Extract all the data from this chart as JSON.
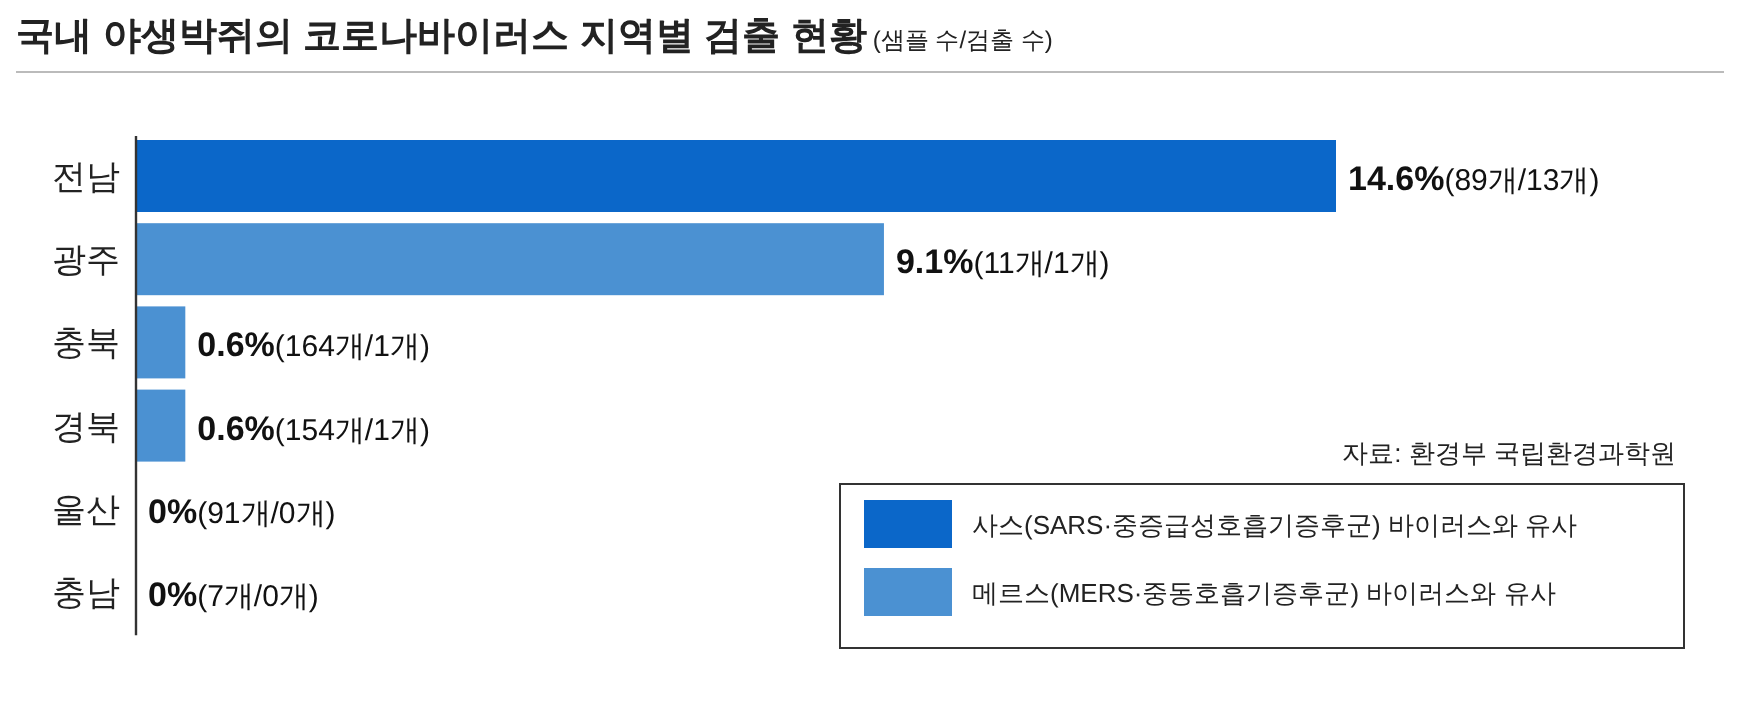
{
  "chart_data": {
    "type": "bar",
    "orientation": "horizontal",
    "title": "국내 야생박쥐의 코로나바이러스 지역별 검출 현황",
    "subtitle": "(샘플 수/검출 수)",
    "categories": [
      "전남",
      "광주",
      "충북",
      "경북",
      "울산",
      "충남"
    ],
    "series": [
      {
        "name": "사스(SARS·중증급성호흡기증후군) 바이러스와 유사",
        "color": "#0b67c9",
        "values": [
          14.6,
          null,
          null,
          null,
          null,
          null
        ],
        "value_labels": [
          "14.6%(89개/13개)",
          null,
          null,
          null,
          null,
          null
        ]
      },
      {
        "name": "메르스(MERS·중동호흡기증후군) 바이러스와 유사",
        "color": "#4b91d2",
        "values": [
          null,
          9.1,
          0.6,
          0.6,
          0,
          0
        ],
        "value_labels": [
          null,
          "9.1%(11개/1개)",
          "0.6%(164개/1개)",
          "0.6%(154개/1개)",
          "0%(91개/0개)",
          "0%(7개/0개)"
        ]
      }
    ],
    "legend": "bottom right",
    "annotations": [
      "자료: 환경부 국립환경과학원"
    ]
  }
}
